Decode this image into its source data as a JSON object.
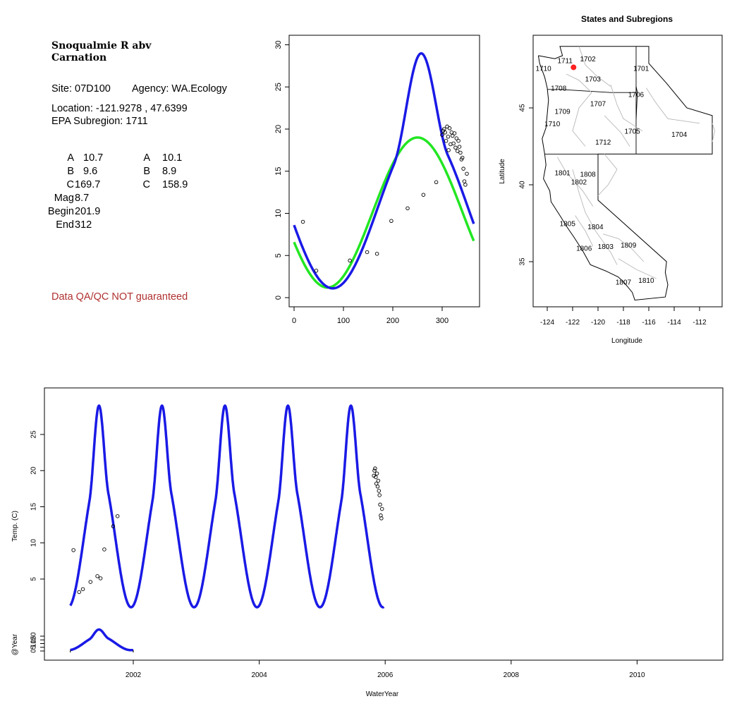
{
  "site": {
    "title_line1": "Snoqualmie R abv",
    "title_line2": "Carnation",
    "site_label": "Site: 07D100",
    "agency_label": "Agency: WA.Ecology",
    "location_label": "Location: -121.9278 , 47.6399",
    "subregion_label": "EPA Subregion: 1711",
    "qa_note": "Data QA/QC NOT guaranteed"
  },
  "params": {
    "left": [
      {
        "label": "A",
        "value": "10.7"
      },
      {
        "label": "B",
        "value": "9.6"
      },
      {
        "label": "C",
        "value": "169.7"
      },
      {
        "label": "Mag",
        "value": "8.7"
      },
      {
        "label": "Begin",
        "value": "201.9"
      },
      {
        "label": "End",
        "value": "312"
      }
    ],
    "right": [
      {
        "label": "A",
        "value": "10.1"
      },
      {
        "label": "B",
        "value": "8.9"
      },
      {
        "label": "C",
        "value": "158.9"
      }
    ]
  },
  "colors": {
    "fit_blue": "#1a1ae6",
    "fit_green": "#22e622",
    "point_color": "#000000",
    "site_marker": "#ff2020",
    "qa_text": "#b03030"
  },
  "chart_data": [
    {
      "id": "annual-fit",
      "type": "scatter",
      "xlabel": "",
      "ylabel": "",
      "xlim": [
        0,
        365
      ],
      "ylim": [
        0,
        30
      ],
      "x_ticks": [
        0,
        100,
        200,
        300
      ],
      "y_ticks": [
        0,
        5,
        10,
        15,
        20,
        25,
        30
      ],
      "points": [
        [
          18,
          9.0
        ],
        [
          45,
          3.2
        ],
        [
          113,
          4.4
        ],
        [
          148,
          5.4
        ],
        [
          168,
          5.2
        ],
        [
          197,
          9.1
        ],
        [
          230,
          10.6
        ],
        [
          262,
          12.2
        ],
        [
          288,
          13.7
        ],
        [
          300,
          19.3
        ],
        [
          302,
          19.8
        ],
        [
          304,
          20.0
        ],
        [
          306,
          19.6
        ],
        [
          308,
          18.6
        ],
        [
          310,
          20.3
        ],
        [
          312,
          19.1
        ],
        [
          313,
          17.5
        ],
        [
          315,
          20.1
        ],
        [
          317,
          18.2
        ],
        [
          319,
          19.6
        ],
        [
          321,
          19.2
        ],
        [
          323,
          18.3
        ],
        [
          325,
          19.5
        ],
        [
          327,
          17.8
        ],
        [
          329,
          18.9
        ],
        [
          331,
          17.4
        ],
        [
          333,
          18.6
        ],
        [
          335,
          17.9
        ],
        [
          337,
          17.2
        ],
        [
          339,
          16.4
        ],
        [
          341,
          16.6
        ],
        [
          343,
          15.3
        ],
        [
          345,
          13.8
        ],
        [
          347,
          13.4
        ],
        [
          350,
          14.7
        ]
      ],
      "series": [
        {
          "name": "",
          "color": "#22e622",
          "model": "sine",
          "A": 10.1,
          "B": 8.9,
          "C": 158.9
        },
        {
          "name": "",
          "color": "#1a1ae6",
          "model": "sine+bump",
          "A": 10.7,
          "B": 9.6,
          "C": 169.7,
          "Mag": 8.7,
          "Begin": 201.9,
          "End": 312
        }
      ]
    },
    {
      "id": "subregion-map",
      "type": "map",
      "title": "States and Subregions",
      "xlabel": "Longitude",
      "ylabel": "Latitude",
      "xlim": [
        -125.5,
        -110.7
      ],
      "ylim": [
        32.1,
        49.6
      ],
      "x_ticks": [
        -124,
        -122,
        -120,
        -118,
        -116,
        -114,
        -112
      ],
      "y_ticks": [
        35,
        40,
        45
      ],
      "site": {
        "lon": -121.9278,
        "lat": 47.6399
      },
      "regions": [
        {
          "label": "1702",
          "lon": -120.8,
          "lat": 48.2
        },
        {
          "label": "1701",
          "lon": -116.6,
          "lat": 47.6
        },
        {
          "label": "1711",
          "lon": -122.6,
          "lat": 48.1
        },
        {
          "label": "1710",
          "lon": -124.3,
          "lat": 47.6
        },
        {
          "label": "1703",
          "lon": -120.4,
          "lat": 46.9
        },
        {
          "label": "1708",
          "lon": -123.1,
          "lat": 46.3
        },
        {
          "label": "1706",
          "lon": -117.0,
          "lat": 45.9
        },
        {
          "label": "1707",
          "lon": -120.0,
          "lat": 45.3
        },
        {
          "label": "1709",
          "lon": -122.8,
          "lat": 44.8
        },
        {
          "label": "1710",
          "lon": -123.6,
          "lat": 44.0
        },
        {
          "label": "1705",
          "lon": -117.3,
          "lat": 43.5
        },
        {
          "label": "1704",
          "lon": -113.6,
          "lat": 43.3
        },
        {
          "label": "1712",
          "lon": -119.6,
          "lat": 42.8
        },
        {
          "label": "1801",
          "lon": -122.8,
          "lat": 40.8
        },
        {
          "label": "1808",
          "lon": -120.8,
          "lat": 40.7
        },
        {
          "label": "1802",
          "lon": -121.5,
          "lat": 40.2
        },
        {
          "label": "1805",
          "lon": -122.4,
          "lat": 37.5
        },
        {
          "label": "1804",
          "lon": -120.2,
          "lat": 37.3
        },
        {
          "label": "1806",
          "lon": -121.1,
          "lat": 35.9
        },
        {
          "label": "1803",
          "lon": -119.4,
          "lat": 36.0
        },
        {
          "label": "1809",
          "lon": -117.6,
          "lat": 36.1
        },
        {
          "label": "1810",
          "lon": -116.2,
          "lat": 33.8
        },
        {
          "label": "1807",
          "lon": -118.0,
          "lat": 33.7
        }
      ]
    },
    {
      "id": "timeseries",
      "type": "line",
      "xlabel": "WaterYear",
      "ylabel": "Temp. (C)",
      "xlim": [
        2000.73,
        2011.42
      ],
      "ylim": [
        -0.4,
        30.5
      ],
      "x_ticks": [
        2002,
        2004,
        2006,
        2008,
        2010
      ],
      "y_ticks": [
        5,
        10,
        15,
        20,
        25
      ],
      "fit_range": [
        2001.0,
        2005.98
      ],
      "points": [
        [
          2001.05,
          9.0
        ],
        [
          2001.14,
          3.2
        ],
        [
          2001.2,
          3.6
        ],
        [
          2001.32,
          4.6
        ],
        [
          2001.43,
          5.4
        ],
        [
          2001.48,
          5.1
        ],
        [
          2001.54,
          9.1
        ],
        [
          2001.75,
          13.7
        ],
        [
          2001.68,
          12.3
        ],
        [
          2005.82,
          19.3
        ],
        [
          2005.83,
          20.0
        ],
        [
          2005.84,
          20.3
        ],
        [
          2005.85,
          19.1
        ],
        [
          2005.86,
          18.2
        ],
        [
          2005.87,
          19.6
        ],
        [
          2005.88,
          17.8
        ],
        [
          2005.89,
          18.6
        ],
        [
          2005.9,
          17.2
        ],
        [
          2005.91,
          16.6
        ],
        [
          2005.92,
          15.3
        ],
        [
          2005.93,
          13.8
        ],
        [
          2005.94,
          13.4
        ],
        [
          2005.95,
          14.7
        ]
      ]
    },
    {
      "id": "year-panel",
      "type": "line",
      "xlabel": "",
      "ylabel": "@Year",
      "ylim": [
        -2,
        26
      ],
      "y_ticks": [
        0,
        5,
        10,
        15,
        20
      ],
      "x_range": [
        2001.0,
        2002.0
      ]
    }
  ]
}
